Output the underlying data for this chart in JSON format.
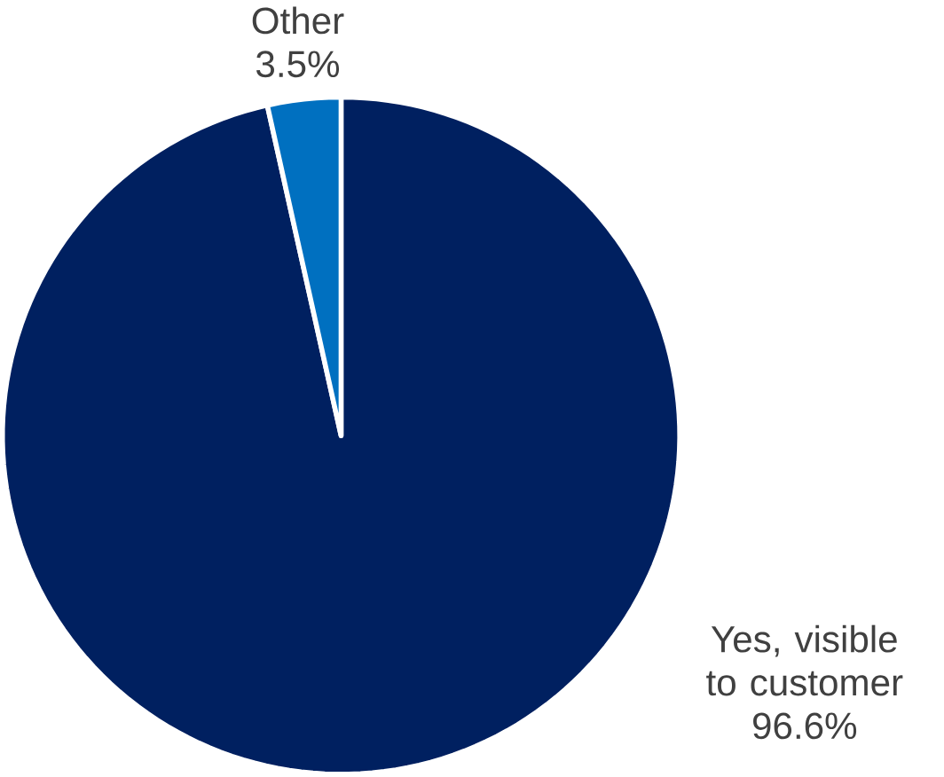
{
  "chart_data": {
    "type": "pie",
    "categories": [
      "Yes, visible to customer",
      "Other"
    ],
    "values": [
      96.6,
      3.5
    ],
    "value_labels": [
      "96.6%",
      "3.5%"
    ],
    "colors": [
      "#002060",
      "#0070c0"
    ]
  }
}
